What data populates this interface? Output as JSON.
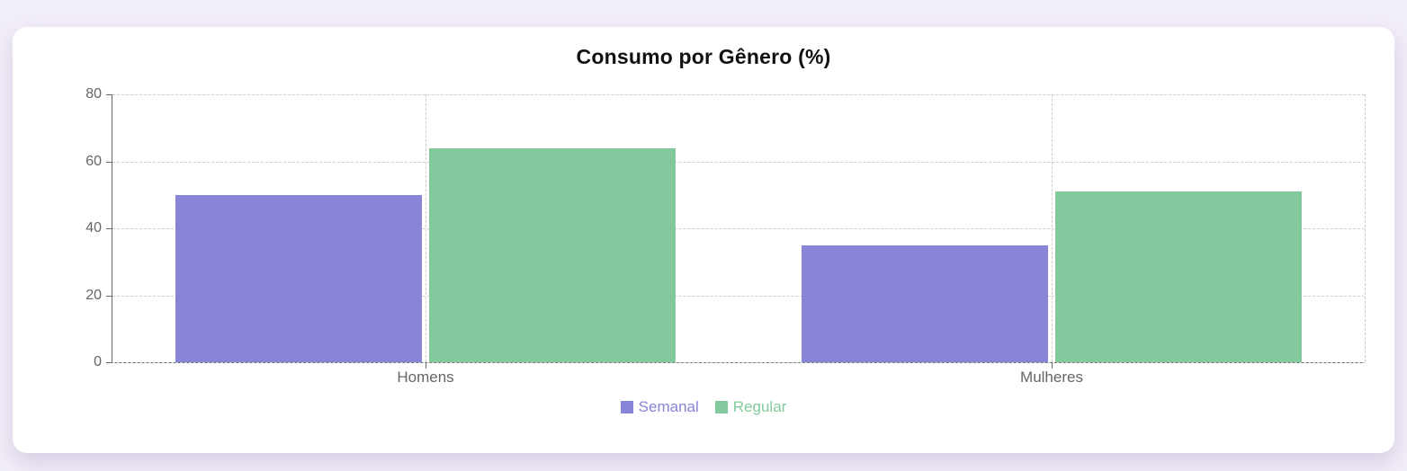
{
  "page": {
    "background_color": "#f2eef8",
    "card_background": "#ffffff"
  },
  "chart_data": {
    "type": "bar",
    "title": "Consumo por Gênero (%)",
    "categories": [
      "Homens",
      "Mulheres"
    ],
    "series": [
      {
        "name": "Semanal",
        "color": "#8884d8",
        "values": [
          50,
          35
        ]
      },
      {
        "name": "Regular",
        "color": "#82ca9d",
        "values": [
          64,
          51
        ]
      }
    ],
    "ylim": [
      0,
      80
    ],
    "yticks": [
      0,
      20,
      40,
      60,
      80
    ],
    "xlabel": "",
    "ylabel": "",
    "grid": "dashed",
    "grid_color": "#cccccc",
    "axis_color": "#666666",
    "tick_label_color": "#666666",
    "legend_position": "bottom"
  }
}
